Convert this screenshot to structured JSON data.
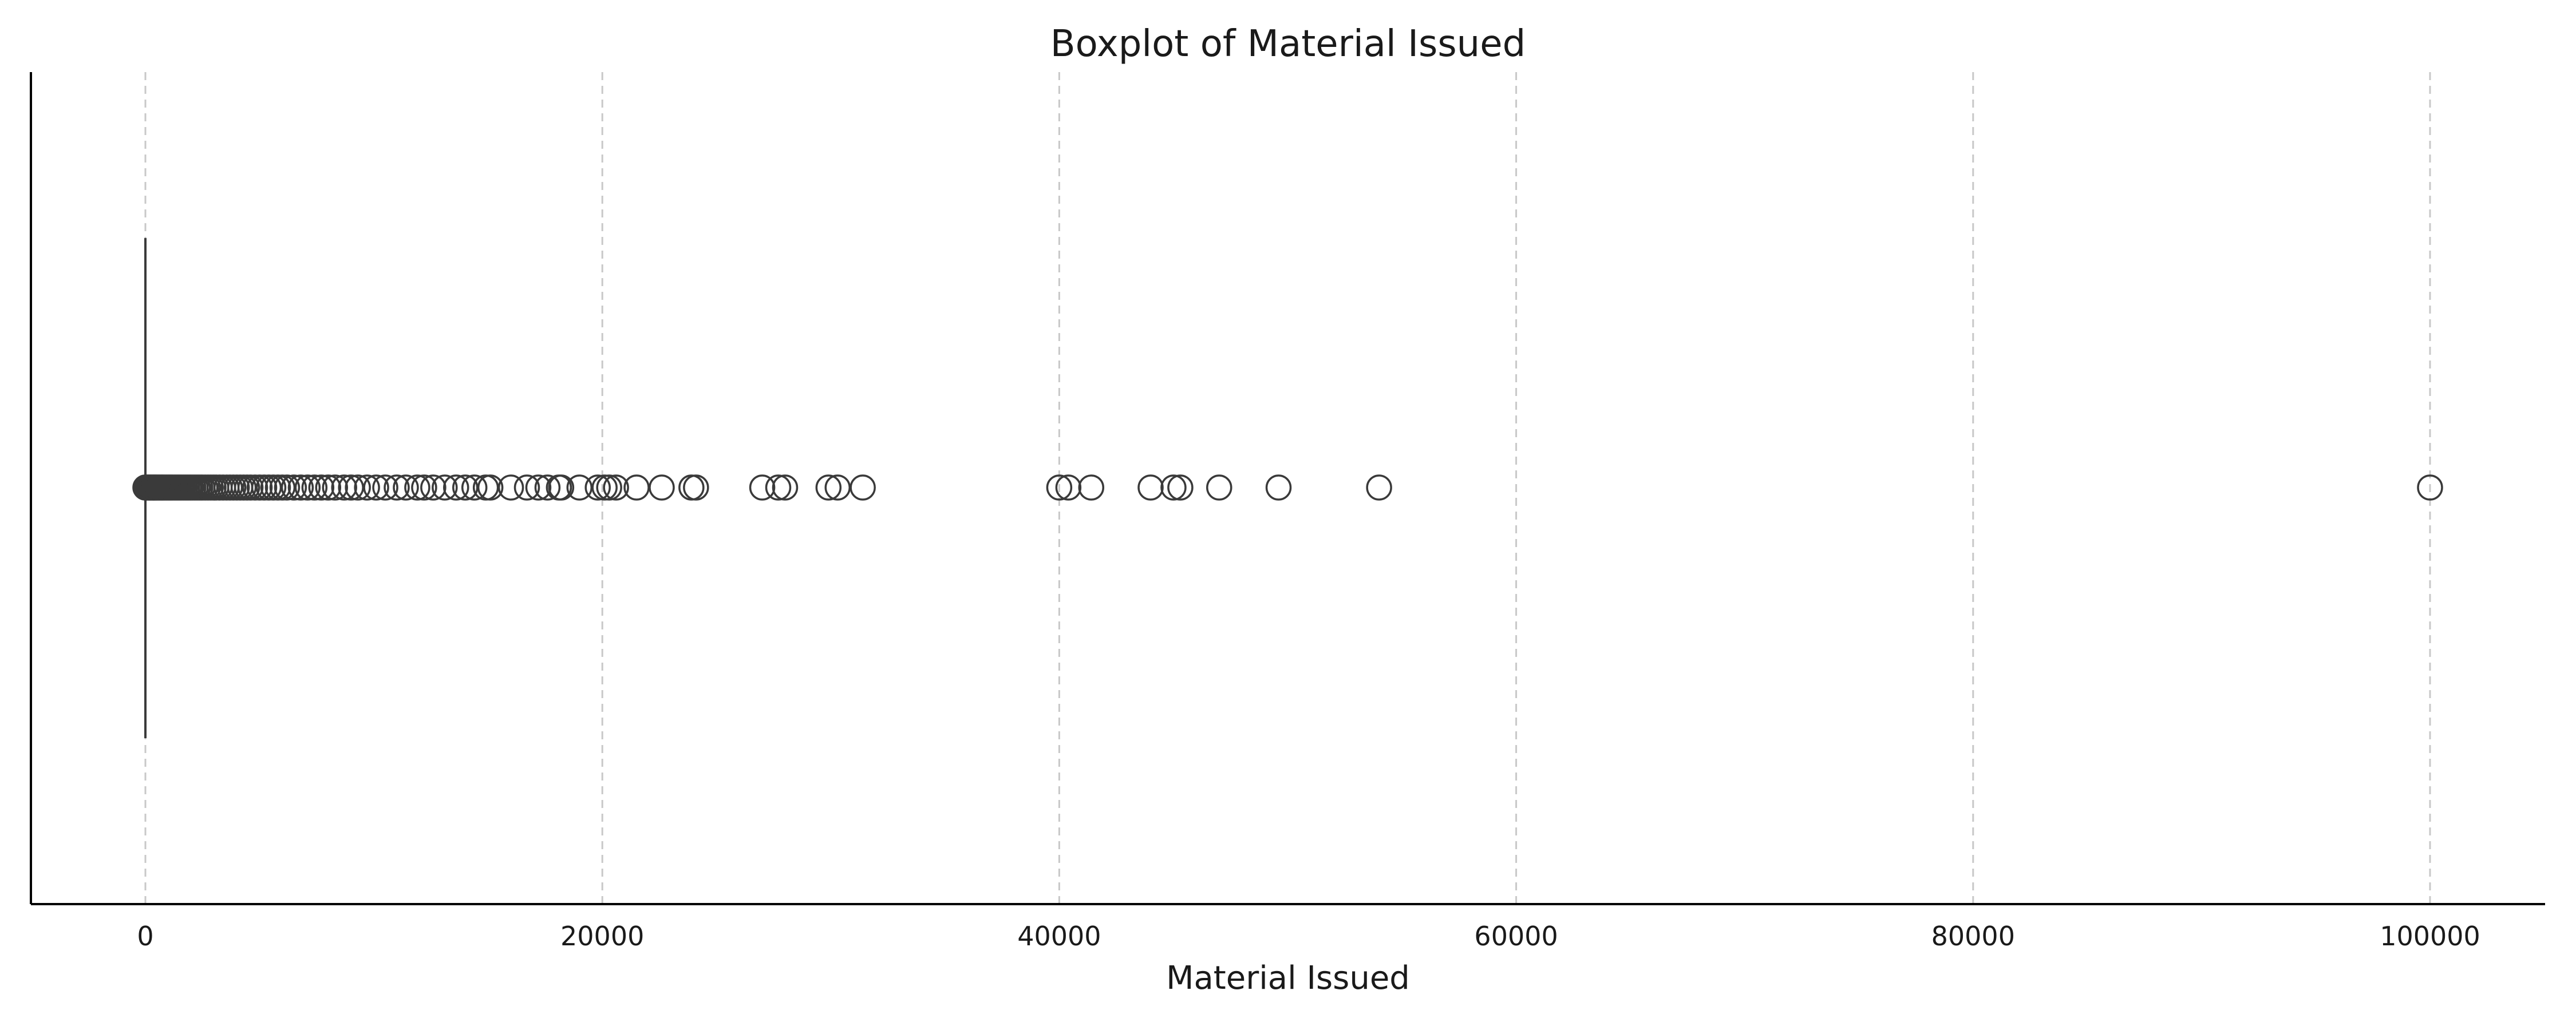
{
  "chart_data": {
    "type": "boxplot",
    "orientation": "horizontal",
    "title": "Boxplot of Material Issued",
    "xlabel": "Material Issued",
    "ylabel": "",
    "xlim": [
      -5000,
      105000
    ],
    "xticks": [
      0,
      20000,
      40000,
      60000,
      80000,
      100000
    ],
    "xtick_labels": [
      "0",
      "20000",
      "40000",
      "60000",
      "80000",
      "100000"
    ],
    "grid": "vertical dashed",
    "colors": {
      "box_line": "#3a3a3a",
      "grid": "#c8c8c8",
      "axis": "#000000"
    },
    "box": {
      "q1": 0,
      "median": 0,
      "q3": 0,
      "whisker_low": 0,
      "whisker_high": 0
    },
    "outliers": [
      0,
      50,
      100,
      150,
      200,
      250,
      300,
      350,
      400,
      450,
      500,
      560,
      620,
      680,
      740,
      800,
      870,
      940,
      1010,
      1080,
      1150,
      1230,
      1310,
      1390,
      1470,
      1550,
      1640,
      1730,
      1820,
      1910,
      2000,
      2100,
      2200,
      2300,
      2400,
      2500,
      2620,
      2740,
      2860,
      2980,
      3100,
      3250,
      3400,
      3550,
      3700,
      3850,
      4000,
      4150,
      4300,
      4450,
      4600,
      4800,
      5000,
      5200,
      5400,
      5600,
      5800,
      6000,
      6200,
      6500,
      6800,
      7100,
      7400,
      7700,
      8000,
      8300,
      8700,
      9000,
      9300,
      9700,
      10100,
      10500,
      11000,
      11400,
      11900,
      12200,
      12600,
      13100,
      13600,
      14000,
      14400,
      14900,
      15100,
      16000,
      16700,
      17200,
      17600,
      18100,
      18200,
      19000,
      19800,
      20100,
      20300,
      20600,
      21500,
      22600,
      23900,
      24100,
      27000,
      27700,
      28000,
      29900,
      30300,
      31400,
      40000,
      40400,
      41400,
      44000,
      45000,
      45300,
      47000,
      49600,
      54000,
      100000
    ]
  }
}
